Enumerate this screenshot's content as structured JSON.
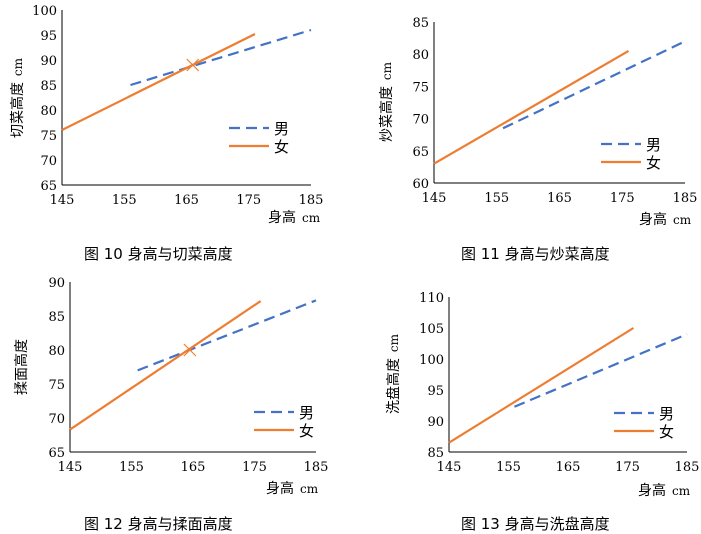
{
  "chart_data": [
    {
      "type": "line",
      "caption": "图 10  身高与切菜高度",
      "xlabel_main": "身高",
      "xlabel_unit": "cm",
      "ylabel_main": "切菜高度",
      "ylabel_unit": "cm",
      "xlim": [
        145,
        185
      ],
      "ylim": [
        65,
        100
      ],
      "x_ticks": [
        145,
        155,
        165,
        175,
        185
      ],
      "y_ticks": [
        65,
        70,
        75,
        80,
        85,
        90,
        95,
        100
      ],
      "series": [
        {
          "name": "男",
          "color": "#4472C4",
          "dash": true,
          "x": [
            156,
            185
          ],
          "y": [
            85,
            96
          ]
        },
        {
          "name": "女",
          "color": "#ED7D31",
          "dash": false,
          "x": [
            145,
            176
          ],
          "y": [
            76,
            95.2
          ]
        }
      ],
      "intersection": {
        "x": 166,
        "y": 89
      }
    },
    {
      "type": "line",
      "caption": "图 11 身高与炒菜高度",
      "xlabel_main": "身高",
      "xlabel_unit": "cm",
      "ylabel_main": "炒菜高度",
      "ylabel_unit": "cm",
      "xlim": [
        145,
        185
      ],
      "ylim": [
        60,
        85
      ],
      "x_ticks": [
        145,
        155,
        165,
        175,
        185
      ],
      "y_ticks": [
        60,
        65,
        70,
        75,
        80,
        85
      ],
      "series": [
        {
          "name": "男",
          "color": "#4472C4",
          "dash": true,
          "x": [
            156,
            185
          ],
          "y": [
            68.5,
            82
          ]
        },
        {
          "name": "女",
          "color": "#ED7D31",
          "dash": false,
          "x": [
            145,
            176
          ],
          "y": [
            63,
            80.5
          ]
        }
      ]
    },
    {
      "type": "line",
      "caption": "图 12  身高与揉面高度",
      "xlabel_main": "身高",
      "xlabel_unit": "cm",
      "ylabel_main": "揉面高度",
      "ylabel_unit": "",
      "xlim": [
        145,
        185
      ],
      "ylim": [
        65,
        90
      ],
      "x_ticks": [
        145,
        155,
        165,
        175,
        185
      ],
      "y_ticks": [
        65,
        70,
        75,
        80,
        85,
        90
      ],
      "series": [
        {
          "name": "男",
          "color": "#4472C4",
          "dash": true,
          "x": [
            156,
            185
          ],
          "y": [
            77,
            87.3
          ]
        },
        {
          "name": "女",
          "color": "#ED7D31",
          "dash": false,
          "x": [
            145,
            176
          ],
          "y": [
            68.3,
            87.2
          ]
        }
      ],
      "intersection": {
        "x": 164.5,
        "y": 80
      }
    },
    {
      "type": "line",
      "caption": "图 13 身高与洗盘高度",
      "xlabel_main": "身高",
      "xlabel_unit": "cm",
      "ylabel_main": "洗盘高度",
      "ylabel_unit": "cm",
      "xlim": [
        145,
        185
      ],
      "ylim": [
        85,
        110
      ],
      "x_ticks": [
        145,
        155,
        165,
        175,
        185
      ],
      "y_ticks": [
        85,
        90,
        95,
        100,
        105,
        110
      ],
      "series": [
        {
          "name": "男",
          "color": "#4472C4",
          "dash": true,
          "x": [
            156,
            185
          ],
          "y": [
            92.3,
            104
          ]
        },
        {
          "name": "女",
          "color": "#ED7D31",
          "dash": false,
          "x": [
            145,
            176
          ],
          "y": [
            86.5,
            105
          ]
        }
      ]
    }
  ]
}
